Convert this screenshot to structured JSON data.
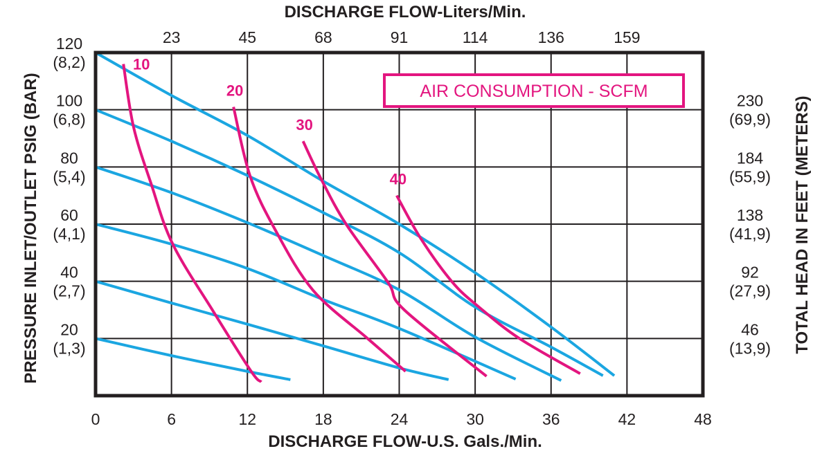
{
  "chart_data": {
    "type": "line",
    "title_top": "DISCHARGE FLOW-Liters/Min.",
    "xlabel": "DISCHARGE FLOW-U.S. Gals./Min.",
    "ylabel": "PRESSURE INLET/OUTLET PSIG (BAR)",
    "ylabel_right": "TOTAL HEAD IN FEET (METERS)",
    "xlim": [
      0,
      48
    ],
    "ylim": [
      0,
      120
    ],
    "grid": true,
    "x_ticks": [
      "0",
      "6",
      "12",
      "18",
      "24",
      "30",
      "36",
      "42",
      "48"
    ],
    "x_tick_values": [
      0,
      6,
      12,
      18,
      24,
      30,
      36,
      42,
      48
    ],
    "top_ticks": [
      "23",
      "45",
      "68",
      "91",
      "114",
      "136",
      "159"
    ],
    "top_tick_values": [
      6,
      12,
      18,
      24,
      30,
      36,
      42
    ],
    "y_ticks": [
      {
        "value": 120,
        "psig": "120",
        "bar": "(8,2)"
      },
      {
        "value": 100,
        "psig": "100",
        "bar": "(6,8)"
      },
      {
        "value": 80,
        "psig": "80",
        "bar": "(5,4)"
      },
      {
        "value": 60,
        "psig": "60",
        "bar": "(4,1)"
      },
      {
        "value": 40,
        "psig": "40",
        "bar": "(2,7)"
      },
      {
        "value": 20,
        "psig": "20",
        "bar": "(1,3)"
      }
    ],
    "y_ticks_right": [
      {
        "value": 100,
        "feet": "230",
        "meters": "(69,9)"
      },
      {
        "value": 80,
        "feet": "184",
        "meters": "(55,9)"
      },
      {
        "value": 60,
        "feet": "138",
        "meters": "(41,9)"
      },
      {
        "value": 40,
        "feet": "92",
        "meters": "(27,9)"
      },
      {
        "value": 20,
        "feet": "46",
        "meters": "(13,9)"
      }
    ],
    "legend_box": "AIR CONSUMPTION - SCFM",
    "colors": {
      "pressure_lines": "#1ba6e1",
      "air_consumption": "#e3157f",
      "grid": "#231f20"
    },
    "pressure_series": [
      {
        "points": [
          [
            0,
            120
          ],
          [
            6,
            105
          ],
          [
            12,
            91
          ],
          [
            18,
            75
          ],
          [
            24,
            60
          ],
          [
            30,
            43
          ],
          [
            36,
            24
          ],
          [
            41,
            7
          ]
        ]
      },
      {
        "points": [
          [
            0,
            100
          ],
          [
            6,
            89
          ],
          [
            12,
            77
          ],
          [
            18,
            64
          ],
          [
            24,
            50
          ],
          [
            30,
            31
          ],
          [
            36,
            17
          ],
          [
            40.1,
            7
          ]
        ]
      },
      {
        "points": [
          [
            0,
            80
          ],
          [
            6,
            71
          ],
          [
            12,
            60.5
          ],
          [
            18,
            49
          ],
          [
            24,
            37
          ],
          [
            30,
            20.5
          ],
          [
            36.8,
            5.3
          ]
        ]
      },
      {
        "points": [
          [
            0,
            60
          ],
          [
            6,
            53
          ],
          [
            12,
            44.5
          ],
          [
            18,
            33.6
          ],
          [
            24,
            23.5
          ],
          [
            33.2,
            5.8
          ]
        ]
      },
      {
        "points": [
          [
            0,
            40
          ],
          [
            6,
            32.4
          ],
          [
            12,
            25
          ],
          [
            18,
            17.4
          ],
          [
            24,
            9.7
          ],
          [
            27.9,
            5.6
          ]
        ]
      },
      {
        "points": [
          [
            0,
            20
          ],
          [
            6,
            14
          ],
          [
            12,
            8.5
          ],
          [
            15.4,
            5.6
          ]
        ]
      }
    ],
    "air_series": [
      {
        "name": "10",
        "points": [
          [
            2.2,
            116
          ],
          [
            3.0,
            94
          ],
          [
            4.4,
            74
          ],
          [
            6.1,
            53
          ],
          [
            9.3,
            29.5
          ],
          [
            12.3,
            8.5
          ],
          [
            13.1,
            4.8
          ]
        ]
      },
      {
        "name": "20",
        "points": [
          [
            10.9,
            101
          ],
          [
            12.2,
            77
          ],
          [
            14.2,
            58
          ],
          [
            17.2,
            36.8
          ],
          [
            21.5,
            20
          ],
          [
            24.5,
            8.5
          ]
        ]
      },
      {
        "name": "30",
        "points": [
          [
            16.4,
            89
          ],
          [
            17.8,
            76
          ],
          [
            19.8,
            60
          ],
          [
            23.1,
            39.7
          ],
          [
            24.4,
            30
          ],
          [
            30.9,
            6.8
          ]
        ]
      },
      {
        "name": "40",
        "points": [
          [
            23.8,
            70
          ],
          [
            25.7,
            55
          ],
          [
            28.2,
            39.7
          ],
          [
            30.3,
            31
          ],
          [
            33.5,
            20
          ],
          [
            38.3,
            7.7
          ]
        ]
      }
    ]
  }
}
